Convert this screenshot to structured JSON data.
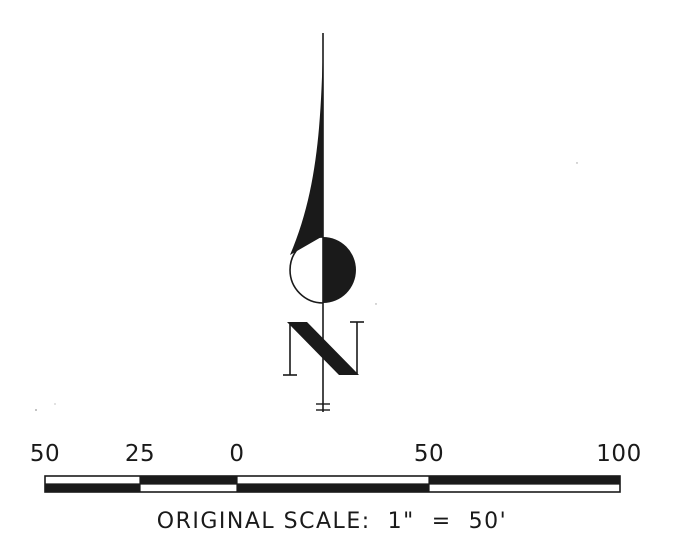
{
  "north_arrow": {
    "letter": "N",
    "color": "#1a1a1a"
  },
  "scale_bar": {
    "labels": [
      "50",
      "25",
      "0",
      "50",
      "100"
    ],
    "caption": "ORIGINAL SCALE:  1\"  =  50'",
    "colors": {
      "filled": "#1a1a1a",
      "empty": "#ffffff"
    }
  }
}
